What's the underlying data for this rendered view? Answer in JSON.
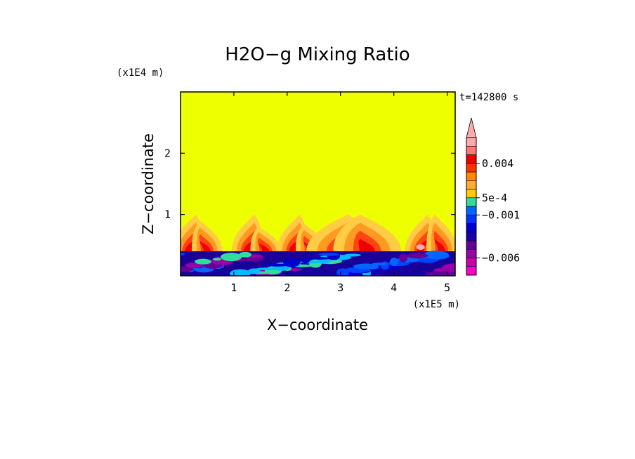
{
  "chart_data": {
    "type": "heatmap",
    "title": "H2O−g Mixing Ratio",
    "xlabel": "X−coordinate",
    "ylabel": "Z−coordinate",
    "x_unit": "(x1E5 m)",
    "y_unit": "(x1E4 m)",
    "time_label": "t=142800 s",
    "xlim": [
      0,
      5.15
    ],
    "ylim": [
      0,
      3.0
    ],
    "x_ticks": [
      1,
      2,
      3,
      4,
      5
    ],
    "x_tick_labels": [
      "1",
      "2",
      "3",
      "4",
      "5"
    ],
    "y_ticks": [
      1,
      2
    ],
    "y_tick_labels": [
      "1",
      "2"
    ],
    "background_level": "near 0 (yellow)",
    "colorbar": {
      "levels": [
        "-0.008",
        "-0.007",
        "-0.006",
        "-0.005",
        "-0.004",
        "-0.003",
        "-0.002",
        "-0.001",
        "0",
        "5e-4",
        "0.001",
        "0.002",
        "0.003",
        "0.004",
        "0.005",
        "0.006"
      ],
      "colors": [
        "#ff00cc",
        "#cc00aa",
        "#9900aa",
        "#660099",
        "#1a00aa",
        "#0000cc",
        "#0033ff",
        "#0066ff",
        "#33dd99",
        "#ffcc00",
        "#ffaa33",
        "#ff8800",
        "#ff3300",
        "#ee0000",
        "#ff7777",
        "#ffaaaa"
      ],
      "labels": [
        {
          "value": 0.004,
          "text": "0.004"
        },
        {
          "value": 0.0005,
          "text": "5e-4"
        },
        {
          "value": -0.001,
          "text": "−0.001"
        },
        {
          "value": -0.006,
          "text": "−0.006"
        }
      ]
    },
    "features": {
      "lower_layer_top_z": 0.4,
      "plumes": [
        {
          "x": 0.15,
          "z_top": 1.0
        },
        {
          "x": 0.5,
          "z_top": 0.9
        },
        {
          "x": 1.25,
          "z_top": 1.0
        },
        {
          "x": 1.6,
          "z_top": 0.8
        },
        {
          "x": 2.1,
          "z_top": 1.0
        },
        {
          "x": 2.45,
          "z_top": 0.85
        },
        {
          "x": 3.0,
          "z_top": 1.0
        },
        {
          "x": 3.5,
          "z_top": 1.0
        },
        {
          "x": 4.5,
          "z_top": 1.0
        },
        {
          "x": 4.9,
          "z_top": 1.0
        }
      ]
    }
  }
}
